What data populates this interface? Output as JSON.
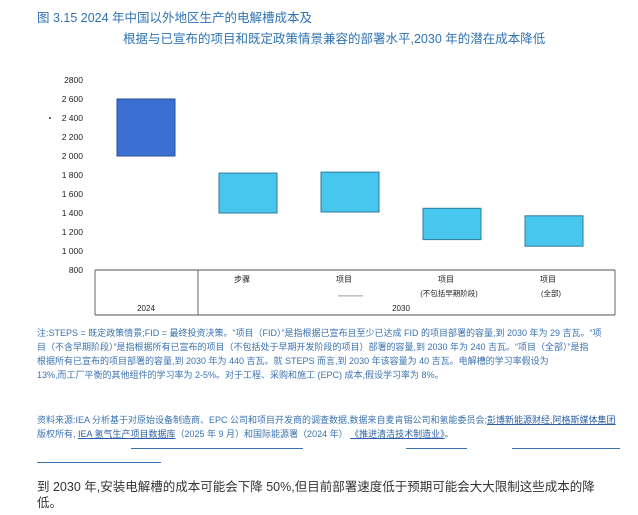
{
  "chart_data": {
    "type": "bar",
    "title": [
      "图 3.15 2024 年中国以外地区生产的电解槽成本及",
      "根据与已宣布的项目和既定政策情景兼容的部署水平,2030 年的潜在成本降低"
    ],
    "ylim": [
      800,
      2800
    ],
    "y_ticks": [
      {
        "value": 2800,
        "label": "2800"
      },
      {
        "value": 2600,
        "label": "2 600"
      },
      {
        "value": 2400,
        "label": "2 400"
      },
      {
        "value": 2200,
        "label": "2 200"
      },
      {
        "value": 2000,
        "label": "2 000"
      },
      {
        "value": 1800,
        "label": "1 800"
      },
      {
        "value": 1600,
        "label": "1 600"
      },
      {
        "value": 1400,
        "label": "1 400"
      },
      {
        "value": 1200,
        "label": "1 200"
      },
      {
        "value": 1000,
        "label": "1 000"
      },
      {
        "value": 800,
        "label": "800"
      }
    ],
    "categories": [
      "",
      "步骤",
      "项目",
      "项目",
      "项目"
    ],
    "category_sublabels": [
      "",
      "",
      "",
      "(不包括早期阶段)",
      "(全部)"
    ],
    "groups": [
      {
        "label": "2024",
        "categories": [
          0
        ]
      },
      {
        "label": "2030",
        "categories": [
          1,
          2,
          3,
          4
        ]
      }
    ],
    "ranges": [
      [
        2000,
        2600
      ],
      [
        1400,
        1820
      ],
      [
        1410,
        1830
      ],
      [
        1120,
        1450
      ],
      [
        1050,
        1370
      ]
    ],
    "group_colors": {
      "2024": "#3b70d2",
      "2030": "#47c6ee"
    },
    "grid": false,
    "legend": false
  },
  "notes": {
    "lines": [
      "注:STEPS = 既定政策情景;FID = 最终投资决策。“项目（FID）”是指根据已宣布且至少已达成 FID 的项目部署的容量,到 2030 年为 29 吉瓦。“项",
      "目（不含早期阶段）”是指根据所有已宣布的项目（不包括处于早期开发阶段的项目）部署的容量,到 2030 年为 240 吉瓦。“项目（全部）”是指",
      "根据所有已宣布的项目部署的容量,到 2030 年为 440 吉瓦。就 STEPS 而言,到 2030 年该容量为 40 吉瓦。电解槽的学习率假设为",
      "13%,而工厂平衡的其他组件的学习率为 2-5%。对于工程、采购和施工 (EPC) 成本,假设学习率为 8%。"
    ]
  },
  "source": {
    "line1": [
      "资料来源:IEA 分析基于对原始设备制造商、EPC 公司和项目开发商的调查数据,数据来自麦肯锡公司和氢能委员会;",
      "彭博新能源财经,阿格斯媒体集团"
    ],
    "line2": [
      "版权所有, ",
      "IEA 氢气生产项目数据库",
      "（2025 年 9 月）和国际能源署（2024 年） ",
      "《推进清洁技术制造业》",
      "。"
    ]
  },
  "heading": {
    "lines": [
      "到 2030 年,安装电解槽的成本可能会下降 50%,但目前部署速度低于预期可能会大大限制这些成本的降",
      "低。"
    ]
  }
}
